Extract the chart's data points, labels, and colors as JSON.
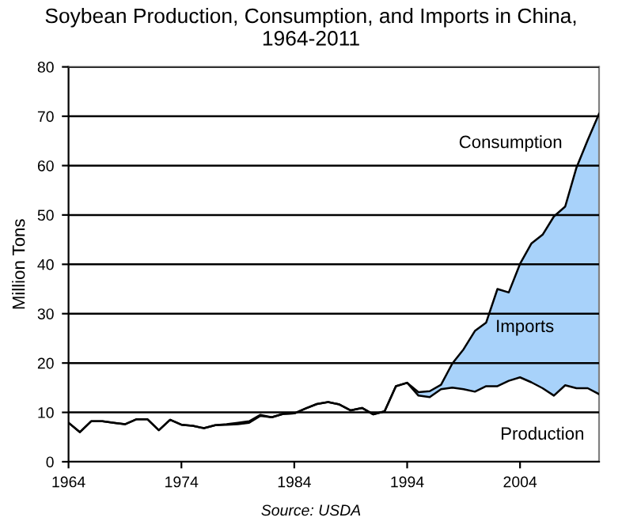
{
  "chart_data": {
    "type": "line",
    "title": "Soybean Production, Consumption, and Imports in China,\n1964-2011",
    "ylabel": "Million Tons",
    "x": [
      1964,
      1965,
      1966,
      1967,
      1968,
      1969,
      1970,
      1971,
      1972,
      1973,
      1974,
      1975,
      1976,
      1977,
      1978,
      1979,
      1980,
      1981,
      1982,
      1983,
      1984,
      1985,
      1986,
      1987,
      1988,
      1989,
      1990,
      1991,
      1992,
      1993,
      1994,
      1995,
      1996,
      1997,
      1998,
      1999,
      2000,
      2001,
      2002,
      2003,
      2004,
      2005,
      2006,
      2007,
      2008,
      2009,
      2010,
      2011
    ],
    "series": [
      {
        "name": "Production",
        "color": "#000000",
        "values": [
          7.9,
          6.0,
          8.2,
          8.2,
          7.9,
          7.6,
          8.6,
          8.6,
          6.4,
          8.5,
          7.5,
          7.3,
          6.8,
          7.4,
          7.5,
          7.6,
          7.9,
          9.3,
          9.0,
          9.7,
          9.8,
          10.8,
          11.7,
          12.1,
          11.6,
          10.4,
          10.9,
          9.6,
          10.2,
          15.3,
          16.0,
          13.4,
          13.1,
          14.7,
          15.0,
          14.7,
          14.2,
          15.3,
          15.3,
          16.4,
          17.1,
          16.1,
          14.9,
          13.4,
          15.5,
          14.9,
          14.9,
          13.7
        ]
      },
      {
        "name": "Consumption",
        "type": "area",
        "color": "#a8d2fa",
        "values": [
          7.9,
          6.0,
          8.2,
          8.2,
          7.9,
          7.6,
          8.6,
          8.6,
          6.4,
          8.5,
          7.5,
          7.3,
          6.8,
          7.4,
          7.6,
          7.9,
          8.2,
          9.5,
          9.0,
          9.7,
          9.8,
          10.8,
          11.7,
          12.1,
          11.6,
          10.4,
          10.9,
          9.6,
          10.2,
          15.3,
          16.0,
          14.1,
          14.3,
          15.6,
          19.9,
          22.8,
          26.5,
          28.2,
          35.0,
          34.3,
          40.1,
          44.2,
          46.0,
          49.7,
          51.7,
          59.6,
          65.2,
          70.5
        ]
      }
    ],
    "annotations": [
      "Imports",
      "Source: USDA"
    ],
    "xlim": [
      1964,
      2011
    ],
    "xticks": [
      1964,
      1974,
      1984,
      1994,
      2004
    ],
    "ylim": [
      0,
      80
    ],
    "yticks": [
      0,
      10,
      20,
      30,
      40,
      50,
      60,
      70,
      80
    ],
    "grid": "y",
    "legend": false,
    "marker": "none",
    "line_style": "solid"
  }
}
